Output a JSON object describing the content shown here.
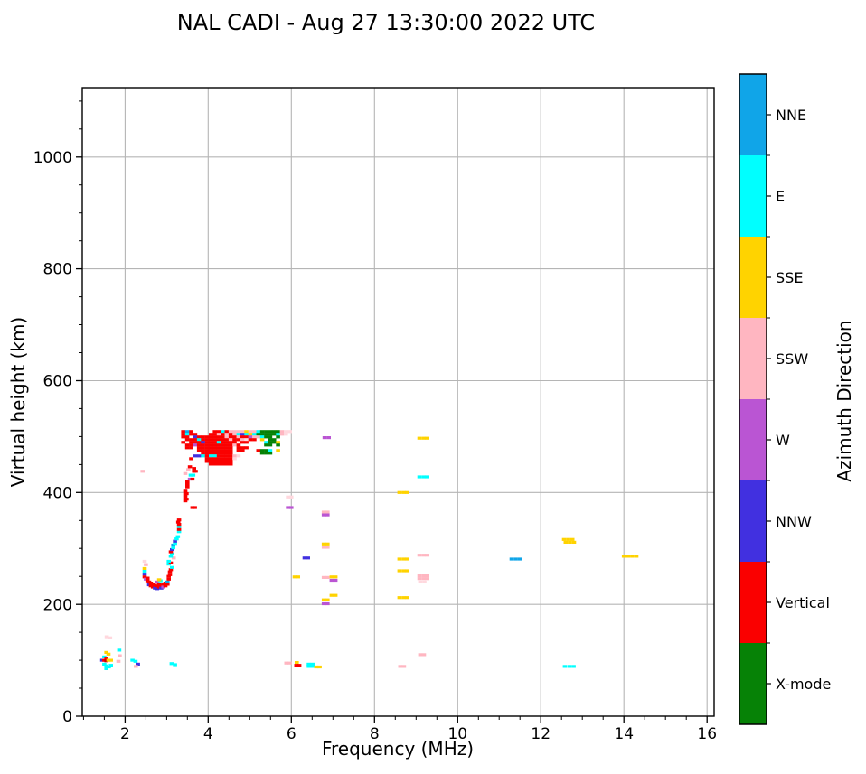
{
  "title": "NAL CADI - Aug 27 13:30:00 2022 UTC",
  "chart_data": {
    "type": "scatter",
    "title": "NAL CADI - Aug 27 13:30:00 2022 UTC",
    "xlabel": "Frequency (MHz)",
    "ylabel": "Virtual height (km)",
    "xlim": [
      0.97,
      16.17
    ],
    "ylim": [
      0,
      1124
    ],
    "x_ticks": [
      2,
      4,
      6,
      8,
      10,
      12,
      14,
      16
    ],
    "y_ticks": [
      0,
      200,
      400,
      600,
      800,
      1000
    ],
    "x_minor_step": 0.5,
    "y_minor_step": 50,
    "grid": true,
    "grid_color": "#b5b5b5",
    "legend_position": "right-colorbar",
    "colorbar": {
      "label": "Azimuth Direction",
      "segments": [
        {
          "label": "NNE",
          "color": "#10A5E8"
        },
        {
          "label": "E",
          "color": "#00FFFF"
        },
        {
          "label": "SSE",
          "color": "#FFD300"
        },
        {
          "label": "SSW",
          "color": "#FFB6C1"
        },
        {
          "label": "W",
          "color": "#BA55D3"
        },
        {
          "label": "NNW",
          "color": "#4130E0"
        },
        {
          "label": "Vertical",
          "color": "#FA0000"
        },
        {
          "label": "X-mode",
          "color": "#068206"
        }
      ]
    },
    "palette": {
      "N": "#10A5E8",
      "C": "#00FFFF",
      "Y": "#FFD300",
      "P": "#FFB6C1",
      "p": "#FFD8DE",
      "W": "#BA55D3",
      "B": "#4130E0",
      "R": "#FA0000",
      "r": "#CC0000",
      "G": "#068206"
    },
    "points": [
      [
        1.56,
        142,
        "p"
      ],
      [
        1.64,
        140,
        "p"
      ],
      [
        1.86,
        118,
        "C"
      ],
      [
        1.87,
        108,
        "P"
      ],
      [
        1.55,
        114,
        "Y"
      ],
      [
        1.6,
        111,
        "Y"
      ],
      [
        1.5,
        106,
        "C"
      ],
      [
        1.55,
        104,
        "R"
      ],
      [
        1.45,
        100,
        "B"
      ],
      [
        1.5,
        100,
        "R"
      ],
      [
        1.55,
        99,
        "r"
      ],
      [
        1.6,
        100,
        "Y"
      ],
      [
        1.66,
        100,
        "Y"
      ],
      [
        1.5,
        93,
        "C"
      ],
      [
        1.55,
        90,
        "C"
      ],
      [
        1.61,
        88,
        "C"
      ],
      [
        1.66,
        91,
        "C"
      ],
      [
        1.55,
        85,
        "C"
      ],
      [
        1.84,
        98,
        "P"
      ],
      [
        2.18,
        100,
        "C"
      ],
      [
        2.25,
        98,
        "C"
      ],
      [
        2.31,
        93,
        "B"
      ],
      [
        2.26,
        89,
        "P"
      ],
      [
        3.12,
        94,
        "C"
      ],
      [
        3.2,
        92,
        "C"
      ],
      [
        5.88,
        95,
        "P"
      ],
      [
        5.96,
        95,
        "P"
      ],
      [
        6.13,
        96,
        "Y"
      ],
      [
        6.12,
        91,
        "R"
      ],
      [
        6.19,
        91,
        "R"
      ],
      [
        6.42,
        93,
        "C"
      ],
      [
        6.51,
        93,
        "C"
      ],
      [
        6.42,
        89,
        "C"
      ],
      [
        6.51,
        89,
        "C"
      ],
      [
        6.6,
        88,
        "Y"
      ],
      [
        6.68,
        88,
        "Y"
      ],
      [
        8.62,
        89,
        "P"
      ],
      [
        8.71,
        89,
        "P"
      ],
      [
        9.1,
        110,
        "P"
      ],
      [
        9.19,
        110,
        "P"
      ],
      [
        12.58,
        89,
        "C"
      ],
      [
        12.69,
        89,
        "C"
      ],
      [
        12.79,
        89,
        "C"
      ],
      [
        2.42,
        438,
        "P"
      ],
      [
        5.92,
        392,
        "p"
      ],
      [
        6.0,
        392,
        "p"
      ],
      [
        5.92,
        373,
        "W"
      ],
      [
        6.0,
        373,
        "W"
      ],
      [
        6.78,
        365,
        "P"
      ],
      [
        6.87,
        365,
        "P"
      ],
      [
        6.78,
        360,
        "W"
      ],
      [
        6.87,
        360,
        "W"
      ],
      [
        6.32,
        283,
        "B"
      ],
      [
        6.4,
        283,
        "B"
      ],
      [
        6.78,
        308,
        "Y"
      ],
      [
        6.87,
        308,
        "Y"
      ],
      [
        6.78,
        302,
        "P"
      ],
      [
        6.87,
        302,
        "P"
      ],
      [
        6.08,
        249,
        "Y"
      ],
      [
        6.16,
        249,
        "Y"
      ],
      [
        6.78,
        248,
        "P"
      ],
      [
        6.87,
        248,
        "P"
      ],
      [
        6.97,
        249,
        "Y"
      ],
      [
        7.06,
        249,
        "Y"
      ],
      [
        6.97,
        243,
        "W"
      ],
      [
        7.06,
        243,
        "W"
      ],
      [
        6.97,
        216,
        "Y"
      ],
      [
        7.06,
        216,
        "Y"
      ],
      [
        6.78,
        208,
        "Y"
      ],
      [
        6.87,
        208,
        "Y"
      ],
      [
        6.78,
        201,
        "W"
      ],
      [
        6.87,
        201,
        "W"
      ],
      [
        6.8,
        498,
        "W"
      ],
      [
        6.9,
        498,
        "W"
      ],
      [
        9.08,
        497,
        "Y"
      ],
      [
        9.18,
        497,
        "Y"
      ],
      [
        9.27,
        497,
        "Y"
      ],
      [
        9.08,
        428,
        "C"
      ],
      [
        9.18,
        428,
        "C"
      ],
      [
        9.27,
        428,
        "C"
      ],
      [
        8.6,
        400,
        "Y"
      ],
      [
        8.7,
        400,
        "Y"
      ],
      [
        8.79,
        400,
        "Y"
      ],
      [
        8.6,
        281,
        "Y"
      ],
      [
        8.7,
        281,
        "Y"
      ],
      [
        8.79,
        281,
        "Y"
      ],
      [
        9.08,
        288,
        "P"
      ],
      [
        9.18,
        288,
        "P"
      ],
      [
        9.27,
        288,
        "P"
      ],
      [
        8.6,
        260,
        "Y"
      ],
      [
        8.7,
        260,
        "Y"
      ],
      [
        8.79,
        260,
        "Y"
      ],
      [
        9.08,
        251,
        "P"
      ],
      [
        9.18,
        251,
        "P"
      ],
      [
        9.27,
        251,
        "P"
      ],
      [
        9.08,
        246,
        "P"
      ],
      [
        9.18,
        246,
        "P"
      ],
      [
        9.27,
        246,
        "P"
      ],
      [
        9.1,
        240,
        "p"
      ],
      [
        9.2,
        240,
        "p"
      ],
      [
        8.6,
        212,
        "Y"
      ],
      [
        8.7,
        212,
        "Y"
      ],
      [
        8.79,
        212,
        "Y"
      ],
      [
        11.3,
        281,
        "N"
      ],
      [
        11.4,
        281,
        "N"
      ],
      [
        11.5,
        281,
        "N"
      ],
      [
        12.56,
        316,
        "Y"
      ],
      [
        12.66,
        316,
        "Y"
      ],
      [
        12.76,
        316,
        "Y"
      ],
      [
        12.6,
        311,
        "Y"
      ],
      [
        12.7,
        311,
        "Y"
      ],
      [
        12.8,
        311,
        "Y"
      ],
      [
        14.0,
        286,
        "Y"
      ],
      [
        14.1,
        286,
        "Y"
      ],
      [
        14.2,
        286,
        "Y"
      ],
      [
        14.3,
        286,
        "Y"
      ],
      [
        2.47,
        277,
        "p"
      ],
      [
        2.5,
        271,
        "P"
      ],
      [
        2.47,
        264,
        "Y"
      ],
      [
        2.47,
        259,
        "C"
      ],
      [
        2.47,
        254,
        "B"
      ],
      [
        2.47,
        249,
        "R"
      ],
      [
        2.5,
        245,
        "W"
      ],
      [
        2.54,
        247,
        "R"
      ],
      [
        2.54,
        242,
        "R"
      ],
      [
        2.58,
        240,
        "R"
      ],
      [
        2.58,
        235,
        "B"
      ],
      [
        2.62,
        238,
        "R"
      ],
      [
        2.62,
        233,
        "R"
      ],
      [
        2.67,
        236,
        "R"
      ],
      [
        2.67,
        231,
        "R"
      ],
      [
        2.72,
        234,
        "R"
      ],
      [
        2.72,
        229,
        "B"
      ],
      [
        2.77,
        232,
        "R"
      ],
      [
        2.77,
        228,
        "B"
      ],
      [
        2.82,
        231,
        "R"
      ],
      [
        2.82,
        236,
        "R"
      ],
      [
        2.87,
        233,
        "R"
      ],
      [
        2.87,
        229,
        "B"
      ],
      [
        2.92,
        235,
        "R"
      ],
      [
        2.92,
        231,
        "W"
      ],
      [
        2.97,
        238,
        "R"
      ],
      [
        2.97,
        233,
        "R"
      ],
      [
        3.02,
        240,
        "N"
      ],
      [
        3.02,
        236,
        "R"
      ],
      [
        2.78,
        240,
        "W"
      ],
      [
        2.85,
        242,
        "C"
      ],
      [
        2.82,
        244,
        "Y"
      ],
      [
        3.05,
        245,
        "R"
      ],
      [
        3.05,
        250,
        "R"
      ],
      [
        3.08,
        253,
        "R"
      ],
      [
        3.08,
        258,
        "R"
      ],
      [
        3.1,
        262,
        "R"
      ],
      [
        3.13,
        266,
        "C"
      ],
      [
        3.05,
        272,
        "C"
      ],
      [
        3.1,
        274,
        "R"
      ],
      [
        3.05,
        277,
        "C"
      ],
      [
        3.17,
        283,
        "P"
      ],
      [
        3.1,
        286,
        "C"
      ],
      [
        3.13,
        290,
        "C"
      ],
      [
        3.1,
        294,
        "R"
      ],
      [
        3.13,
        298,
        "B"
      ],
      [
        3.16,
        301,
        "C"
      ],
      [
        3.16,
        306,
        "N"
      ],
      [
        3.2,
        309,
        "C"
      ],
      [
        3.2,
        313,
        "B"
      ],
      [
        3.24,
        317,
        "C"
      ],
      [
        3.27,
        321,
        "C"
      ],
      [
        3.3,
        330,
        "C"
      ],
      [
        3.3,
        334,
        "R"
      ],
      [
        3.3,
        339,
        "C"
      ],
      [
        3.3,
        343,
        "R"
      ],
      [
        3.28,
        347,
        "R"
      ],
      [
        3.3,
        351,
        "R"
      ],
      [
        3.45,
        385,
        "R"
      ],
      [
        3.45,
        390,
        "R"
      ],
      [
        3.45,
        395,
        "R"
      ],
      [
        3.45,
        400,
        "R"
      ],
      [
        3.45,
        404,
        "R"
      ],
      [
        3.48,
        388,
        "R"
      ],
      [
        3.48,
        398,
        "R"
      ],
      [
        3.62,
        373,
        "R"
      ],
      [
        3.68,
        373,
        "R"
      ],
      [
        3.5,
        410,
        "R"
      ],
      [
        3.5,
        415,
        "R"
      ],
      [
        3.5,
        420,
        "R"
      ],
      [
        3.56,
        424,
        "W"
      ],
      [
        3.62,
        424,
        "R"
      ],
      [
        3.58,
        431,
        "C"
      ],
      [
        3.64,
        431,
        "C"
      ],
      [
        3.45,
        434,
        "P"
      ],
      [
        3.66,
        438,
        "R"
      ],
      [
        3.7,
        438,
        "R"
      ],
      [
        3.66,
        443,
        "R"
      ],
      [
        3.52,
        441,
        "P"
      ],
      [
        3.56,
        446,
        "R"
      ]
    ],
    "cluster_grid": {
      "comment": "dense F-region echo mosaic; rows top-to-bottom, one char per 0.095 MHz bin",
      "f0": 3.4,
      "df": 0.095,
      "h0": 509,
      "dh": -4.85,
      "codes": [
        "RNR.....RRCRPPPPYPPCGGGGGPpp",
        "RCRR...RRPRPRPCBCYCGGGGGCPp.",
        "RR.BRRRRRRRPRRPRRWPPCGG.G...",
        ".RRRCRRRRRRRPRRPpRR.Y.GG....",
        "R.RRRBRRRCRRRR.RR....CGGY...",
        ".RRWRRRRRRRRRPR......GG.G...",
        ".RR.RRRRRRRRR.RRR...........",
        "....RRRRRRRRR.RR...RGGC.Y...",
        ".....RRRRRRRR.......GGG.....",
        "...BBCRCCRRRRPp.............",
        "..R...RRRRRRRp..............",
        "......RRRRRRR...............",
        ".......RRRRRR..............."
      ]
    }
  }
}
